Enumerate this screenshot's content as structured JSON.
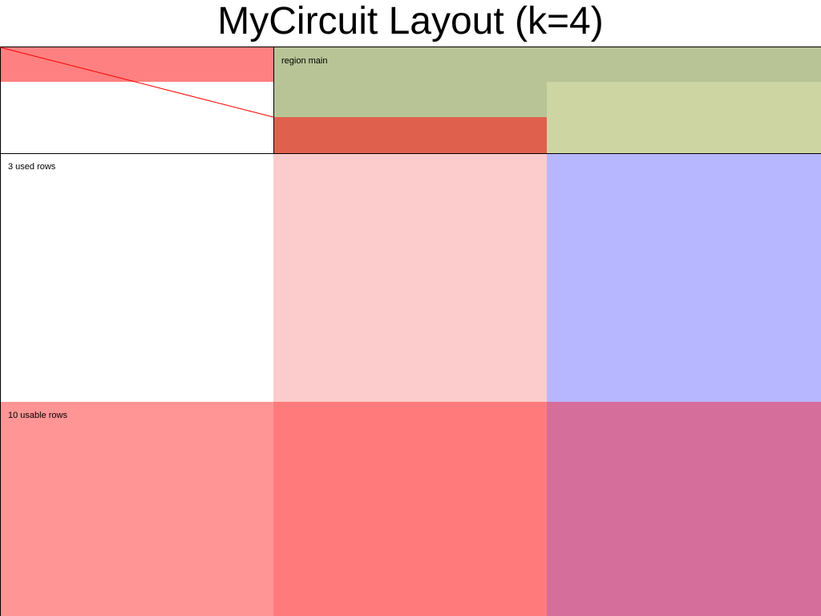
{
  "title": "MyCircuit Layout (k=4)",
  "labels": {
    "region_main": "region main",
    "used_rows": "3 used rows",
    "usable_rows": "10 usable rows"
  },
  "colors": {
    "top_left_strip": "#ff8080",
    "region_main_top": "#b8c496",
    "region_main_bottom_left": "#df614d",
    "region_main_bottom_right": "#cdd6a3",
    "used_rows_left": "#ffffff",
    "used_rows_middle": "#fccbcb",
    "used_rows_right": "#b7b7ff",
    "usable_rows_left": "#ff9595",
    "usable_rows_middle": "#ff7b7b",
    "usable_rows_right": "#d66e9b",
    "diagonal_line": "#ff0000",
    "border": "#000000"
  }
}
